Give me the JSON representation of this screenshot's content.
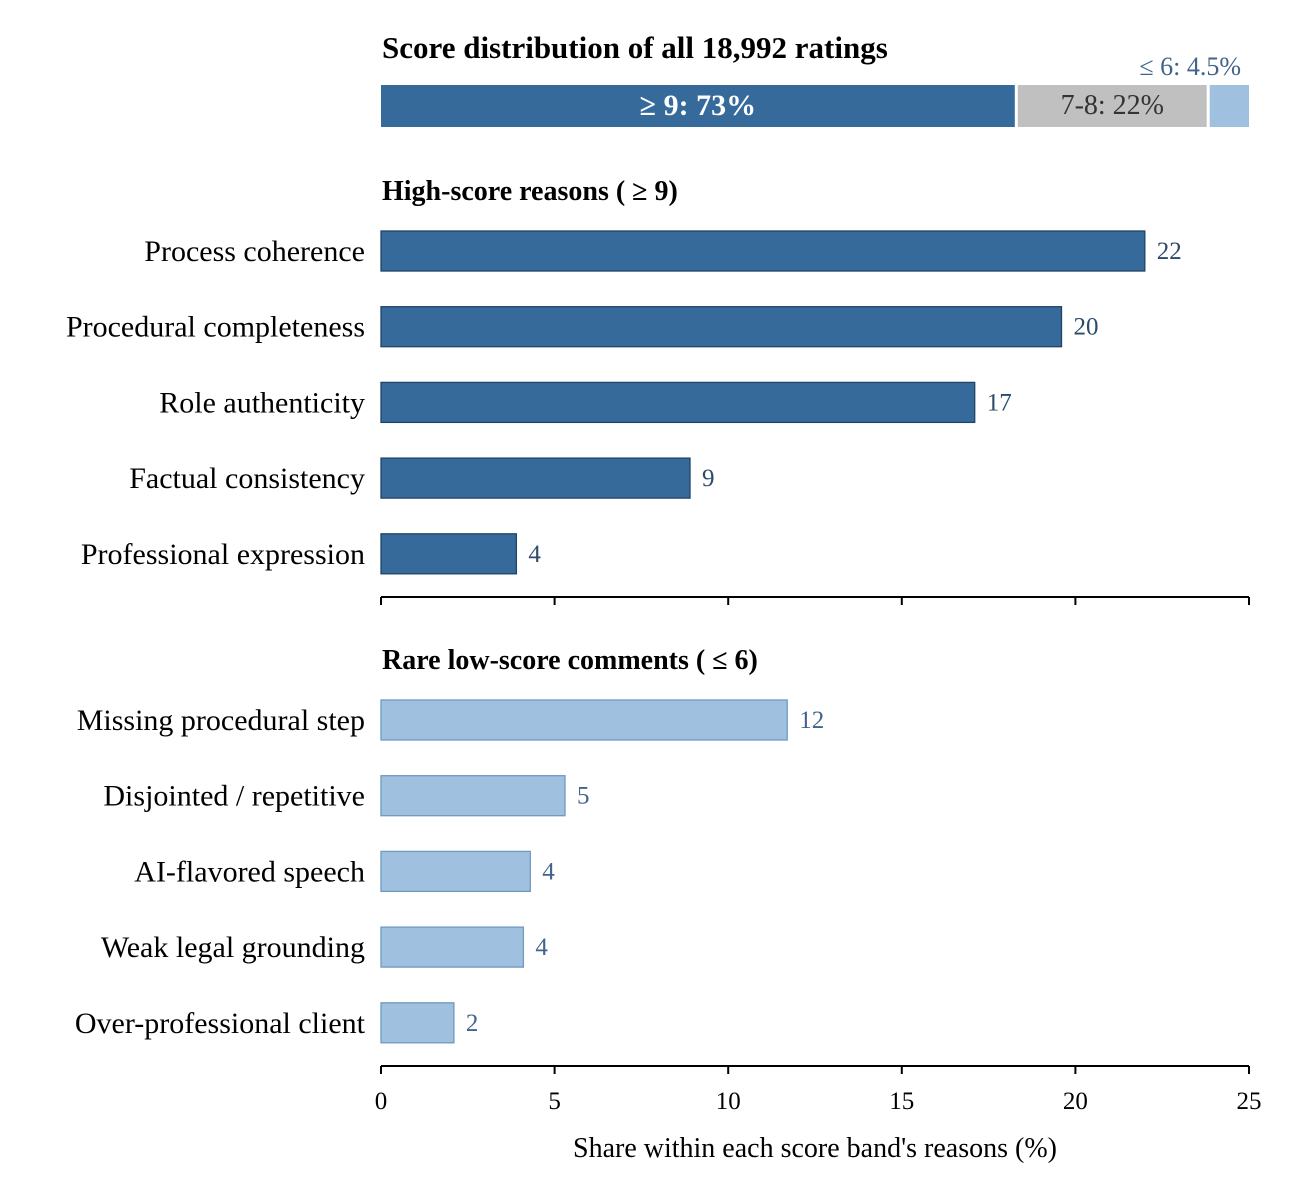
{
  "colors": {
    "high": "#366a9a",
    "high_edge": "#1f4466",
    "mid": "#c0c0c0",
    "low": "#a0c0e0",
    "low_edge": "#6f99c1",
    "high_label": "#2d4a6b",
    "low_label": "#42648a",
    "axis": "#000000"
  },
  "chart_data": [
    {
      "type": "bar",
      "orientation": "horizontal-stacked",
      "title": "Score distribution of all 18,992 ratings",
      "segments": [
        {
          "label": "≥ 9: 73%",
          "value": 73,
          "color": "#366a9a"
        },
        {
          "label": "7-8: 22%",
          "value": 22,
          "color": "#c0c0c0"
        },
        {
          "label": "≤ 6: 4.5%",
          "value": 4.5,
          "color": "#a0c0e0"
        }
      ]
    },
    {
      "type": "bar",
      "orientation": "horizontal",
      "title": "High-score reasons ( ≥ 9)",
      "categories": [
        "Process coherence",
        "Procedural completeness",
        "Role authenticity",
        "Factual consistency",
        "Professional expression"
      ],
      "values": [
        22,
        19.6,
        17.1,
        8.9,
        3.9
      ],
      "value_labels": [
        "22",
        "20",
        "17",
        "9",
        "4"
      ],
      "xlim": [
        0,
        25
      ]
    },
    {
      "type": "bar",
      "orientation": "horizontal",
      "title": "Rare low-score comments ( ≤ 6)",
      "categories": [
        "Missing procedural step",
        "Disjointed / repetitive",
        "AI-flavored speech",
        "Weak legal grounding",
        "Over-professional client"
      ],
      "values": [
        11.7,
        5.3,
        4.3,
        4.1,
        2.1
      ],
      "value_labels": [
        "12",
        "5",
        "4",
        "4",
        "2"
      ],
      "xlim": [
        0,
        25
      ],
      "xticks": [
        "0",
        "5",
        "10",
        "15",
        "20",
        "25"
      ],
      "xlabel": "Share within each score band's reasons (%)"
    }
  ]
}
